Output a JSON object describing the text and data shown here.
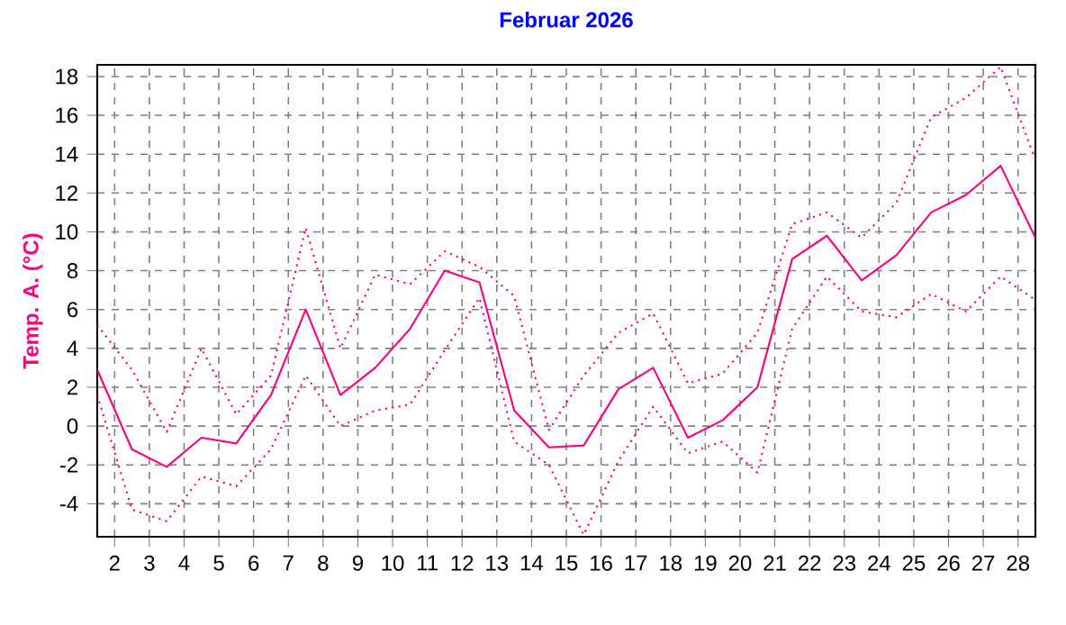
{
  "chart_data": {
    "type": "line",
    "title": "Februar 2026",
    "ylabel": "Temp. A. (°C)",
    "x": [
      1.5,
      2.5,
      3.5,
      4.5,
      5.5,
      6.5,
      7.5,
      8.5,
      9.5,
      10.5,
      11.5,
      12.5,
      13.5,
      14.5,
      15.5,
      16.5,
      17.5,
      18.5,
      19.5,
      20.5,
      21.5,
      22.5,
      23.5,
      24.5,
      25.5,
      26.5,
      27.5,
      28.5
    ],
    "series": [
      {
        "color": "#ff0080",
        "line_style": "dotted",
        "values": [
          5.2,
          2.9,
          -0.3,
          4.0,
          0.6,
          2.6,
          10.2,
          4.0,
          7.8,
          7.3,
          9.0,
          8.2,
          6.7,
          -0.2,
          2.6,
          4.8,
          5.8,
          2.2,
          2.7,
          4.8,
          10.4,
          11.0,
          9.7,
          11.5,
          15.9,
          16.9,
          18.5,
          13.7
        ]
      },
      {
        "color": "#ff0080",
        "line_style": "solid",
        "values": [
          2.9,
          -1.2,
          -2.1,
          -0.6,
          -0.9,
          1.6,
          6.0,
          1.6,
          3.0,
          5.0,
          8.0,
          7.4,
          0.8,
          -1.1,
          -1.0,
          1.9,
          3.0,
          -0.6,
          0.3,
          2.0,
          8.6,
          9.8,
          7.5,
          8.8,
          11.0,
          11.9,
          13.4,
          9.7
        ]
      },
      {
        "color": "#ff0080",
        "line_style": "dotted",
        "values": [
          1.6,
          -4.3,
          -4.9,
          -2.6,
          -3.1,
          -1.2,
          2.6,
          0.0,
          0.8,
          1.1,
          3.9,
          6.6,
          -0.8,
          -2.0,
          -5.6,
          -1.8,
          1.0,
          -1.4,
          -0.8,
          -2.4,
          5.0,
          7.7,
          5.9,
          5.6,
          6.8,
          5.9,
          7.7,
          6.5
        ]
      }
    ],
    "xlim": [
      1.5,
      28.5
    ],
    "ylim": [
      -5.7,
      18.6
    ],
    "xticks": [
      2,
      3,
      4,
      5,
      6,
      7,
      8,
      9,
      10,
      11,
      12,
      13,
      14,
      15,
      16,
      17,
      18,
      19,
      20,
      21,
      22,
      23,
      24,
      25,
      26,
      27,
      28
    ],
    "yticks": [
      -4,
      -2,
      0,
      2,
      4,
      6,
      8,
      10,
      12,
      14,
      16,
      18
    ],
    "grid": true,
    "marker": "none"
  }
}
